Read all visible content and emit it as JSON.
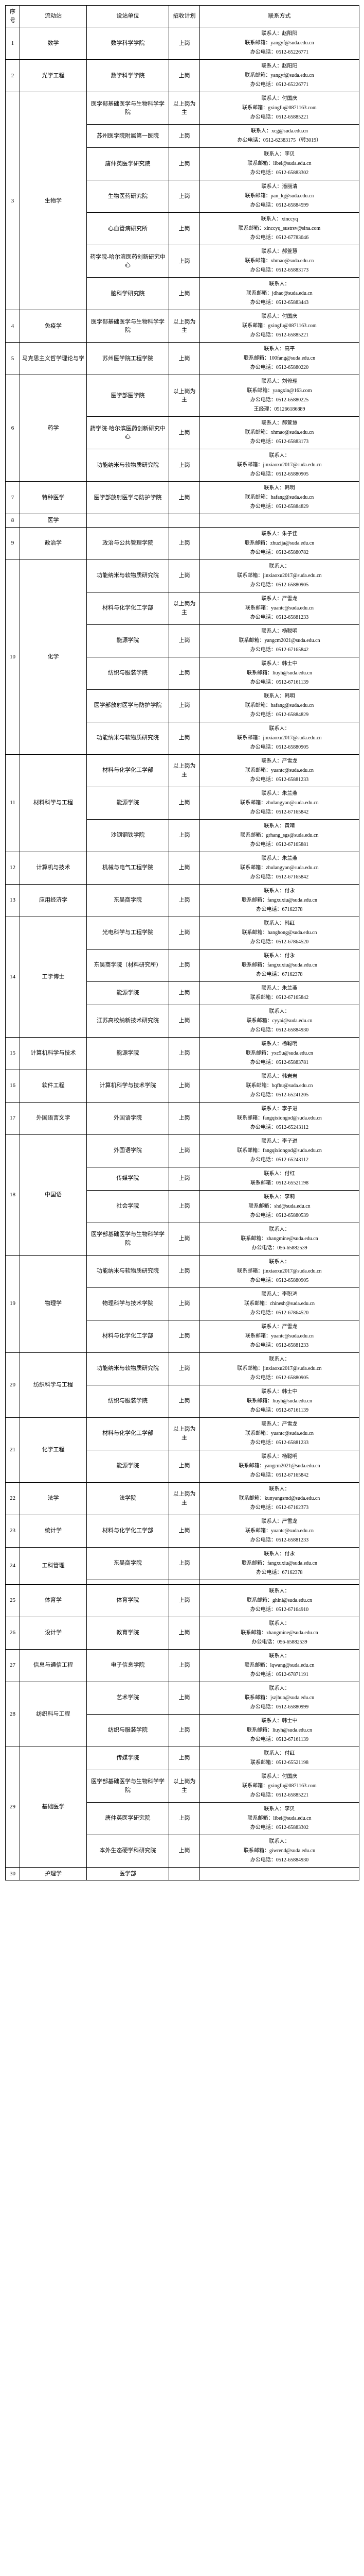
{
  "headers": {
    "seq": "序号",
    "station": "流动站",
    "unit": "设站单位",
    "plan": "招收计划",
    "contact": "联系方式"
  },
  "rows": [
    {
      "seq": "1",
      "station": "数学",
      "unit": "数学科学学院",
      "plan": "上岗",
      "contact": "联系人：赵阳阳\n联系邮箱：yangyf@suda.edu.cn\n办公电话：0512-65226771"
    },
    {
      "seq": "2",
      "station": "光学工程",
      "unit": "数学科学学院",
      "plan": "上岗",
      "contact": "联系人：赵阳阳\n联系邮箱：yangyf@suda.edu.cn\n办公电话：0512-65226771"
    },
    {
      "seq": "3",
      "station": "",
      "unit": "医学部基础医学与生物科学学院",
      "plan": "以上岗为主",
      "contact": "联系人：付国庆\n联系邮箱：gxingfu@0871163.com\n办公电话：0512-65885221"
    },
    {
      "seq": "3",
      "station": "",
      "unit": "苏州医学院附属第一医院",
      "plan": "上岗",
      "contact": "联系人：xcg@suda.edu.cn\n办公电话：0512-62383175（转3019）"
    },
    {
      "seq": "3",
      "station": "",
      "unit": "唐仲英医学研究院",
      "plan": "上岗",
      "contact": "联系人：李贝\n联系邮箱：libei@suda.edu.cn\n办公电话：0512-65883302"
    },
    {
      "seq": "3",
      "station": "生物学",
      "unit": "生物医药研究院",
      "plan": "上岗",
      "contact": "联系人：潘丽清\n联系邮箱：pan_lq@suda.edu.cn\n办公电话：0512-65884599"
    },
    {
      "seq": "3",
      "station": "",
      "unit": "心血管病研究所",
      "plan": "上岗",
      "contact": "联系人：xinccyq\n联系邮箱：xinccyq_sustrsv@sina.com\n办公电话：0512-67783046"
    },
    {
      "seq": "3",
      "station": "",
      "unit": "药学院-哈尔滨医药创新研究中心",
      "plan": "上岗",
      "contact": "联系人：郝萱慧\n联系邮箱：xhmao@suda.edu.cn\n办公电话：0512-65883173"
    },
    {
      "seq": "3",
      "station": "",
      "unit": "脑科学研究院",
      "plan": "上岗",
      "contact": "联系人：\n联系邮箱：jdhao@suda.edu.cn\n办公电话：0512-65883443"
    },
    {
      "seq": "4",
      "station": "免疫学",
      "unit": "医学部基础医学与生物科学学院",
      "plan": "以上岗为主",
      "contact": "联系人：付国庆\n联系邮箱：gxingfu@0871163.com\n办公电话：0512-65885221"
    },
    {
      "seq": "5",
      "station": "马克思主义哲学理论与学",
      "unit": "苏州医学院工程学院",
      "plan": "上岗",
      "contact": "联系人：高平\n联系邮箱：100fang@suda.edu.cn\n办公电话：0512-65880220"
    },
    {
      "seq": "6",
      "station": "",
      "unit": "医学部医学院",
      "plan": "以上岗为主",
      "contact": "联系人：刘修理\n联系邮箱：yangxin@163.com\n办公电话：0512-65880225\n王经理：051266186889"
    },
    {
      "seq": "6",
      "station": "药学",
      "unit": "药学院-哈尔滨医药创新研究中心",
      "plan": "上岗",
      "contact": "联系人：郝萱慧\n联系邮箱：xhmao@suda.edu.cn\n办公电话：0512-65883173"
    },
    {
      "seq": "6",
      "station": "",
      "unit": "功能纳米与软物质研究院",
      "plan": "上岗",
      "contact": "联系人：\n联系邮箱：jinxiaoxu2017@suda.edu.cn\n办公电话：0512-65880905"
    },
    {
      "seq": "7",
      "station": "特种医学",
      "unit": "医学部放射医学与防护学院",
      "plan": "上岗",
      "contact": "联系人：韩明\n联系邮箱：hafang@suda.edu.cn\n办公电话：0512-65884829"
    },
    {
      "seq": "8",
      "station": "医学",
      "unit": "",
      "plan": "",
      "contact": ""
    },
    {
      "seq": "9",
      "station": "政治学",
      "unit": "政治与公共管理学院",
      "plan": "上岗",
      "contact": "联系人：朱子佳\n联系邮箱：zhuzija@suda.edu.cn\n办公电话：0512-65880782"
    },
    {
      "seq": "10",
      "station": "",
      "unit": "功能纳米与软物质研究院",
      "plan": "上岗",
      "contact": "联系人：\n联系邮箱：jinxiaoxu2017@suda.edu.cn\n办公电话：0512-65880905"
    },
    {
      "seq": "10",
      "station": "",
      "unit": "材料与化学化工学部",
      "plan": "以上岗为主",
      "contact": "联系人：严雪龙\n联系邮箱：yuantc@suda.edu.cn\n办公电话：0512-65881233"
    },
    {
      "seq": "10",
      "station": "化学",
      "unit": "能源学院",
      "plan": "上岗",
      "contact": "联系人：杨聪明\n联系邮箱：yangcm2021@suda.edu.cn\n办公电话：0512-67165842"
    },
    {
      "seq": "10",
      "station": "",
      "unit": "纺织与服装学院",
      "plan": "上岗",
      "contact": "联系人：韩士中\n联系邮箱：liuyh@suda.edu.cn\n办公电话：0512-67161139"
    },
    {
      "seq": "10",
      "station": "",
      "unit": "医学部放射医学与防护学院",
      "plan": "上岗",
      "contact": "联系人：韩明\n联系邮箱：hafang@suda.edu.cn\n办公电话：0512-65884829"
    },
    {
      "seq": "10",
      "station": "",
      "unit": "功能纳米与软物质研究院",
      "plan": "上岗",
      "contact": "联系人：\n联系邮箱：jinxiaoxu2017@suda.edu.cn\n办公电话：0512-65880905"
    },
    {
      "seq": "11",
      "station": "材料科学与工程",
      "unit": "材料与化学化工学部",
      "plan": "以上岗为主",
      "contact": "联系人：严雪龙\n联系邮箱：yuantc@suda.edu.cn\n办公电话：0512-65881233"
    },
    {
      "seq": "11",
      "station": "",
      "unit": "能源学院",
      "plan": "上岗",
      "contact": "联系人：朱兰燕\n联系邮箱：zhulangyan@suda.edu.cn\n办公电话：0512-67165842"
    },
    {
      "seq": "11",
      "station": "",
      "unit": "沙钢钢铁学院",
      "plan": "上岗",
      "contact": "联系人：黄晴\n联系邮箱：grhang_sgs@suda.edu.cn\n办公电话：0512-67165881"
    },
    {
      "seq": "12",
      "station": "计算机与技术",
      "unit": "机械与电气工程学院",
      "plan": "上岗",
      "contact": "联系人：朱兰燕\n联系邮箱：zhulangyan@suda.edu.cn\n办公电话：0512-67165842"
    },
    {
      "seq": "13",
      "station": "应用经济学",
      "unit": "东吴商学院",
      "plan": "上岗",
      "contact": "联系人：付永\n联系邮箱：fangxuxiu@suda.edu.cn\n办公电话：67162378"
    },
    {
      "seq": "14",
      "station": "",
      "unit": "光电科学与工程学院",
      "plan": "上岗",
      "contact": "联系人：韩红\n联系邮箱：hanghong@suda.edu.cn\n办公电话：0512-67864520"
    },
    {
      "seq": "14",
      "station": "工学博士",
      "unit": "东吴商学院（材料研究所）",
      "plan": "上岗",
      "contact": "联系人：付永\n联系邮箱：fangxuxiu@suda.edu.cn\n办公电话：67162378"
    },
    {
      "seq": "14",
      "station": "",
      "unit": "能源学院",
      "plan": "上岗",
      "contact": "联系人：朱兰燕\n联系邮箱：0512-67165842"
    },
    {
      "seq": "14",
      "station": "",
      "unit": "江苏高校纳新技术研究院",
      "plan": "上岗",
      "contact": "联系人：\n联系邮箱：cyyai@suda.edu.cn\n办公电话：0512-65884930"
    },
    {
      "seq": "15",
      "station": "计算机科学与技术",
      "unit": "能源学院",
      "plan": "上岗",
      "contact": "联系人：杨聪明\n联系邮箱：yxc5u@suda.edu.cn\n办公电话：0512-65883781"
    },
    {
      "seq": "16",
      "station": "软件工程",
      "unit": "计算机科学与技术学院",
      "plan": "上岗",
      "contact": "联系人：韩岩岩\n联系邮箱：bqfhu@suda.edu.cn\n办公电话：0512-65241205"
    },
    {
      "seq": "17",
      "station": "外国语言文学",
      "unit": "外国语学院",
      "plan": "上岗",
      "contact": "联系人：李子进\n联系邮箱：fangqixiongod@suda.edu.cn\n办公电话：0512-65243112"
    },
    {
      "seq": "18",
      "station": "",
      "unit": "外国语学院",
      "plan": "上岗",
      "contact": "联系人：李子进\n联系邮箱：fangqixiongod@suda.edu.cn\n办公电话：0512-65243112"
    },
    {
      "seq": "18",
      "station": "",
      "unit": "传媒学院",
      "plan": "上岗",
      "contact": "联系人：付红\n联系邮箱：0512-65521198"
    },
    {
      "seq": "18",
      "station": "中国语",
      "unit": "社会学院",
      "plan": "上岗",
      "contact": "联系人：李莉\n联系邮箱：shd@suda.edu.cn\n办公电话：0512-65880539"
    },
    {
      "seq": "18",
      "station": "",
      "unit": "医学部基础医学与生物科学学院",
      "plan": "上岗",
      "contact": "联系人：\n联系邮箱：zhangmine@suda.edu.cn\n办公电话：056-65882539"
    },
    {
      "seq": "19",
      "station": "",
      "unit": "功能纳米与软物质研究院",
      "plan": "上岗",
      "contact": "联系人：\n联系邮箱：jinxiaoxu2017@suda.edu.cn\n办公电话：0512-65880905"
    },
    {
      "seq": "19",
      "station": "物理学",
      "unit": "物理科学与技术学院",
      "plan": "上岗",
      "contact": "联系人：李职鸿\n联系邮箱：chinesh@suda.edu.cn\n办公电话：0512-67864520"
    },
    {
      "seq": "19",
      "station": "",
      "unit": "材料与化学化工学部",
      "plan": "上岗",
      "contact": "联系人：严雪龙\n联系邮箱：yuantc@suda.edu.cn\n办公电话：0512-65881233"
    },
    {
      "seq": "20",
      "station": "纺织科学与工程",
      "unit": "功能纳米与软物质研究院",
      "plan": "上岗",
      "contact": "联系人：\n联系邮箱：jinxiaoxu2017@suda.edu.cn\n办公电话：0512-65880905"
    },
    {
      "seq": "20",
      "station": "",
      "unit": "纺织与服装学院",
      "plan": "上岗",
      "contact": "联系人：韩士中\n联系邮箱：liuyh@suda.edu.cn\n办公电话：0512-67161139"
    },
    {
      "seq": "21",
      "station": "化学工程",
      "unit": "材料与化学化工学部",
      "plan": "以上岗为主",
      "contact": "联系人：严雪龙\n联系邮箱：yuantc@suda.edu.cn\n办公电话：0512-65881233"
    },
    {
      "seq": "21",
      "station": "",
      "unit": "能源学院",
      "plan": "上岗",
      "contact": "联系人：杨聪明\n联系邮箱：yangcm2021@suda.edu.cn\n办公电话：0512-67165842"
    },
    {
      "seq": "22",
      "station": "法学",
      "unit": "法学院",
      "plan": "以上岗为主",
      "contact": "联系人：\n联系邮箱：kunyangsmd@suda.edu.cn\n办公电话：0512-67162373"
    },
    {
      "seq": "23",
      "station": "统计学",
      "unit": "材料与化学化工学部",
      "plan": "上岗",
      "contact": "联系人：严雪龙\n联系邮箱：yuantc@suda.edu.cn\n办公电话：0512-65881233"
    },
    {
      "seq": "24",
      "station": "",
      "unit": "东吴商学院",
      "plan": "上岗",
      "contact": "联系人：付永\n联系邮箱：fangxuxiu@suda.edu.cn\n办公电话：67162378"
    },
    {
      "seq": "24",
      "station": "工科管理",
      "unit": "",
      "plan": "",
      "contact": ""
    },
    {
      "seq": "25",
      "station": "体育学",
      "unit": "体育学院",
      "plan": "上岗",
      "contact": "联系人：\n联系邮箱：ghini@suda.edu.cn\n办公电话：0512-67164910"
    },
    {
      "seq": "26",
      "station": "设计学",
      "unit": "教育学院",
      "plan": "上岗",
      "contact": "联系人：\n联系邮箱：zhangmine@suda.edu.cn\n办公电话：056-65882539"
    },
    {
      "seq": "27",
      "station": "信息与通信工程",
      "unit": "电子信息学院",
      "plan": "上岗",
      "contact": "联系人：\n联系邮箱：lqwang@suda.edu.cn\n办公电话：0512-67871191"
    },
    {
      "seq": "28",
      "station": "",
      "unit": "艺术学院",
      "plan": "上岗",
      "contact": "联系人：\n联系邮箱：jszjhuo@suda.edu.cn\n办公电话：0512-65880999"
    },
    {
      "seq": "28",
      "station": "纺织科与工程",
      "unit": "纺织与服装学院",
      "plan": "上岗",
      "contact": "联系人：韩士中\n联系邮箱：liuyh@suda.edu.cn\n办公电话：0512-67161139"
    },
    {
      "seq": "29",
      "station": "",
      "unit": "传媒学院",
      "plan": "上岗",
      "contact": "联系人：付红\n联系邮箱：0512-65521198"
    },
    {
      "seq": "29",
      "station": "基础医学",
      "unit": "医学部基础医学与生物科学学院",
      "plan": "以上岗为主",
      "contact": "联系人：付国庆\n联系邮箱：gxingfu@0871163.com\n办公电话：0512-65885221"
    },
    {
      "seq": "29",
      "station": "",
      "unit": "唐仲英医学研究院",
      "plan": "上岗",
      "contact": "联系人：李贝\n联系邮箱：libei@suda.edu.cn\n办公电话：0512-65883302"
    },
    {
      "seq": "29",
      "station": "",
      "unit": "本外生态硬学科研究院",
      "plan": "上岗",
      "contact": "联系人：\n联系邮箱：giwrend@suda.edu.cn\n办公电话：0512-65884930"
    },
    {
      "seq": "30",
      "station": "护理学",
      "unit": "医学部"
    }
  ]
}
